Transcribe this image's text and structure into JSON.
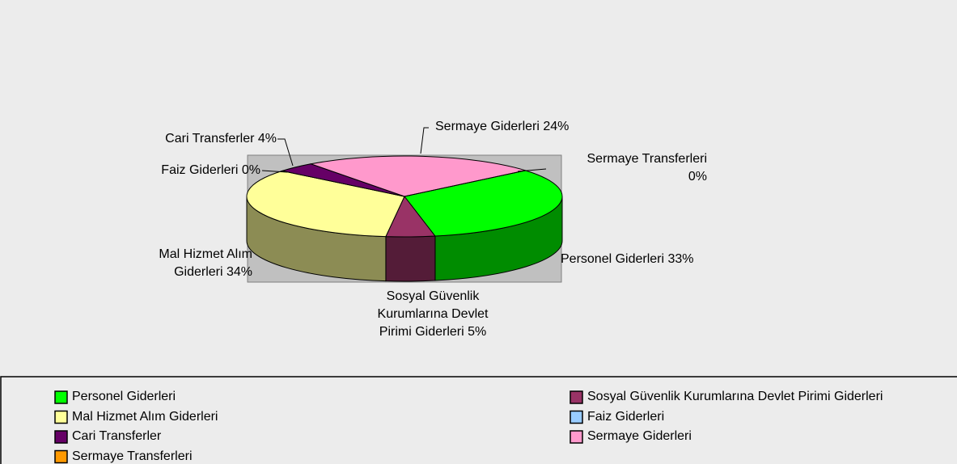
{
  "chart_data": {
    "type": "pie3d",
    "categories": [
      "Personel Giderleri",
      "Sosyal Güvenlik Kurumlarına Devlet Pirimi Giderleri",
      "Mal Hizmet Alım Giderleri",
      "Faiz Giderleri",
      "Cari Transferler",
      "Sermaye Giderleri",
      "Sermaye Transferleri"
    ],
    "values": [
      33,
      5,
      34,
      0,
      4,
      24,
      0
    ],
    "value_labels": [
      "Personel Giderleri 33%",
      "Sosyal Güvenlik\nKurumlarına Devlet\nPirimi Giderleri 5%",
      "Mal Hizmet Alım\nGiderleri 34%",
      "Faiz Giderleri 0%",
      "Cari Transferler 4%",
      "Sermaye Giderleri 24%",
      "Sermaye Transferleri\n0%"
    ],
    "colors": [
      "#00ff00",
      "#993366",
      "#ffff99",
      "#99ccff",
      "#660066",
      "#ff99cc",
      "#ff9900"
    ],
    "legend": "bottom"
  }
}
